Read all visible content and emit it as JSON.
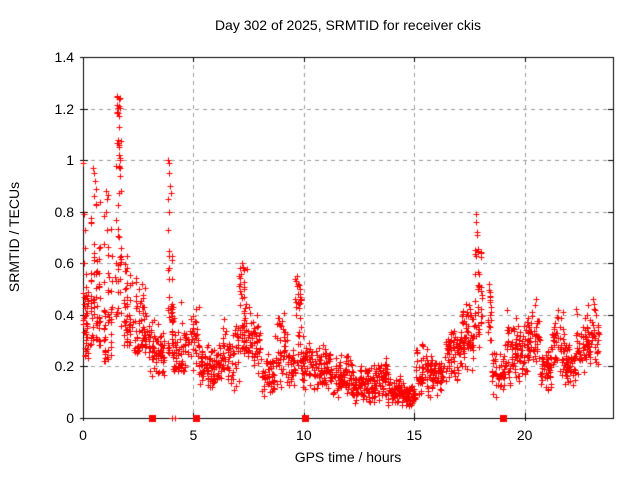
{
  "chart_data": {
    "type": "scatter",
    "title": "Day 302 of 2025, SRMTID for receiver ckis",
    "xlabel": "GPS time / hours",
    "ylabel": "SRMTID / TECUs",
    "xlim": [
      0,
      24
    ],
    "ylim": [
      0,
      1.4
    ],
    "xticks": [
      0,
      5,
      10,
      15,
      20
    ],
    "xtick_labels": [
      "0",
      "5",
      "10",
      "15",
      "20"
    ],
    "yticks": [
      0,
      0.2,
      0.4,
      0.6,
      0.8,
      1,
      1.2,
      1.4
    ],
    "ytick_labels": [
      "0",
      "0.2",
      "0.4",
      "0.6",
      "0.8",
      "1",
      "1.2",
      "1.4"
    ],
    "grid": true,
    "legend": "none",
    "marker": "plus",
    "marker_color": "#ff0000",
    "grid_color": "#9e9e9e",
    "axis_color": "#000000",
    "background_color": "#ffffff",
    "series_name": "SRMTID",
    "event_squares_x": [
      3.13,
      5.1,
      10.05,
      19.0
    ],
    "zero_line_points_x": [
      4.02,
      4.17
    ],
    "outlier_points": [
      [
        0.02,
        0.99
      ],
      [
        0.04,
        0.79
      ],
      [
        0.07,
        0.73
      ],
      [
        0.1,
        0.66
      ],
      [
        0.05,
        0.6
      ],
      [
        0.12,
        0.56
      ],
      [
        0.45,
        0.97
      ],
      [
        0.5,
        0.95
      ],
      [
        0.53,
        0.92
      ],
      [
        0.57,
        0.89
      ],
      [
        0.48,
        0.86
      ],
      [
        0.6,
        0.83
      ],
      [
        1.05,
        0.88
      ],
      [
        1.1,
        0.85
      ],
      [
        1.02,
        0.8
      ],
      [
        1.63,
        1.13
      ],
      [
        1.6,
        1.08
      ],
      [
        1.62,
        1.02
      ],
      [
        1.66,
        0.97
      ],
      [
        3.87,
        1.0
      ],
      [
        3.9,
        0.99
      ],
      [
        3.88,
        0.95
      ],
      [
        3.92,
        0.9
      ],
      [
        3.85,
        0.85
      ],
      [
        3.9,
        0.8
      ],
      [
        3.86,
        0.73
      ],
      [
        3.91,
        0.63
      ],
      [
        7.2,
        0.6
      ],
      [
        7.23,
        0.58
      ],
      [
        7.17,
        0.56
      ],
      [
        9.7,
        0.55
      ],
      [
        9.73,
        0.52
      ],
      [
        17.78,
        0.79
      ],
      [
        17.8,
        0.76
      ],
      [
        17.82,
        0.72
      ],
      [
        17.86,
        0.71
      ],
      [
        17.75,
        0.65
      ],
      [
        17.79,
        0.63
      ],
      [
        18.38,
        0.52
      ],
      [
        18.41,
        0.47
      ],
      [
        19.2,
        0.42
      ],
      [
        20.5,
        0.46
      ],
      [
        20.47,
        0.44
      ],
      [
        21.5,
        0.42
      ],
      [
        22.85,
        0.44
      ],
      [
        23.1,
        0.46
      ]
    ],
    "clusters": [
      {
        "x0": 0.0,
        "x1": 0.25,
        "ymin": 0.2,
        "ymax": 0.52,
        "n": 40,
        "dist": "tri"
      },
      {
        "x0": 0.3,
        "x1": 0.8,
        "ymin": 0.28,
        "ymax": 0.98,
        "n": 65,
        "dist": "bottom",
        "cols": 4
      },
      {
        "x0": 0.9,
        "x1": 1.35,
        "ymin": 0.22,
        "ymax": 0.9,
        "n": 50,
        "dist": "bottom",
        "cols": 3
      },
      {
        "x0": 1.45,
        "x1": 1.75,
        "ymin": 0.35,
        "ymax": 1.1,
        "n": 40,
        "dist": "uniform",
        "cols": 3
      },
      {
        "x0": 1.5,
        "x1": 1.68,
        "ymin": 1.17,
        "ymax": 1.25,
        "n": 12,
        "dist": "uniform",
        "cols": 2
      },
      {
        "x0": 1.8,
        "x1": 2.3,
        "ymin": 0.28,
        "ymax": 0.68,
        "n": 45,
        "dist": "bottom",
        "cols": 4
      },
      {
        "x0": 2.3,
        "x1": 3.0,
        "ymin": 0.25,
        "ymax": 0.58,
        "n": 70,
        "dist": "bottom"
      },
      {
        "x0": 3.0,
        "x1": 3.7,
        "ymin": 0.15,
        "ymax": 0.4,
        "n": 65,
        "dist": "tri"
      },
      {
        "x0": 3.8,
        "x1": 4.1,
        "ymin": 0.25,
        "ymax": 1.0,
        "n": 40,
        "dist": "bottom",
        "cols": 2
      },
      {
        "x0": 4.05,
        "x1": 4.6,
        "ymin": 0.18,
        "ymax": 0.5,
        "n": 55,
        "dist": "bottom"
      },
      {
        "x0": 4.6,
        "x1": 5.25,
        "ymin": 0.18,
        "ymax": 0.45,
        "n": 45,
        "dist": "tri"
      },
      {
        "x0": 5.25,
        "x1": 6.3,
        "ymin": 0.1,
        "ymax": 0.3,
        "n": 95,
        "dist": "tri"
      },
      {
        "x0": 6.3,
        "x1": 7.05,
        "ymin": 0.1,
        "ymax": 0.4,
        "n": 60,
        "dist": "tri"
      },
      {
        "x0": 7.05,
        "x1": 7.45,
        "ymin": 0.25,
        "ymax": 0.6,
        "n": 45,
        "dist": "uniform",
        "cols": 4
      },
      {
        "x0": 7.45,
        "x1": 8.1,
        "ymin": 0.15,
        "ymax": 0.45,
        "n": 55,
        "dist": "tri"
      },
      {
        "x0": 8.1,
        "x1": 8.7,
        "ymin": 0.06,
        "ymax": 0.26,
        "n": 50,
        "dist": "tri"
      },
      {
        "x0": 8.7,
        "x1": 9.3,
        "ymin": 0.1,
        "ymax": 0.42,
        "n": 50,
        "dist": "tri"
      },
      {
        "x0": 9.3,
        "x1": 9.6,
        "ymin": 0.12,
        "ymax": 0.3,
        "n": 30,
        "dist": "tri"
      },
      {
        "x0": 9.6,
        "x1": 9.9,
        "ymin": 0.18,
        "ymax": 0.55,
        "n": 35,
        "dist": "uniform",
        "cols": 3
      },
      {
        "x0": 9.9,
        "x1": 10.6,
        "ymin": 0.08,
        "ymax": 0.33,
        "n": 60,
        "dist": "tri"
      },
      {
        "x0": 10.6,
        "x1": 11.2,
        "ymin": 0.1,
        "ymax": 0.3,
        "n": 60,
        "dist": "tri"
      },
      {
        "x0": 11.2,
        "x1": 12.2,
        "ymin": 0.07,
        "ymax": 0.26,
        "n": 95,
        "dist": "tri"
      },
      {
        "x0": 12.2,
        "x1": 13.4,
        "ymin": 0.05,
        "ymax": 0.22,
        "n": 110,
        "dist": "tri"
      },
      {
        "x0": 13.4,
        "x1": 13.8,
        "ymin": 0.06,
        "ymax": 0.25,
        "n": 40,
        "dist": "tri"
      },
      {
        "x0": 13.8,
        "x1": 14.4,
        "ymin": 0.04,
        "ymax": 0.18,
        "n": 55,
        "dist": "tri"
      },
      {
        "x0": 14.4,
        "x1": 15.05,
        "ymin": 0.03,
        "ymax": 0.15,
        "n": 60,
        "dist": "tri"
      },
      {
        "x0": 15.05,
        "x1": 15.7,
        "ymin": 0.08,
        "ymax": 0.3,
        "n": 55,
        "dist": "tri"
      },
      {
        "x0": 15.7,
        "x1": 16.4,
        "ymin": 0.08,
        "ymax": 0.26,
        "n": 60,
        "dist": "tri"
      },
      {
        "x0": 16.4,
        "x1": 17.1,
        "ymin": 0.13,
        "ymax": 0.37,
        "n": 70,
        "dist": "tri"
      },
      {
        "x0": 17.1,
        "x1": 17.7,
        "ymin": 0.17,
        "ymax": 0.46,
        "n": 65,
        "dist": "tri"
      },
      {
        "x0": 17.7,
        "x1": 18.1,
        "ymin": 0.27,
        "ymax": 0.66,
        "n": 40,
        "dist": "uniform",
        "cols": 3
      },
      {
        "x0": 18.3,
        "x1": 18.5,
        "ymin": 0.3,
        "ymax": 0.5,
        "n": 16,
        "dist": "uniform",
        "cols": 2
      },
      {
        "x0": 18.5,
        "x1": 19.1,
        "ymin": 0.07,
        "ymax": 0.28,
        "n": 45,
        "dist": "tri"
      },
      {
        "x0": 19.1,
        "x1": 19.6,
        "ymin": 0.12,
        "ymax": 0.42,
        "n": 45,
        "dist": "tri"
      },
      {
        "x0": 19.6,
        "x1": 20.1,
        "ymin": 0.13,
        "ymax": 0.4,
        "n": 45,
        "dist": "tri"
      },
      {
        "x0": 20.1,
        "x1": 20.7,
        "ymin": 0.17,
        "ymax": 0.46,
        "n": 50,
        "dist": "tri"
      },
      {
        "x0": 20.7,
        "x1": 21.2,
        "ymin": 0.1,
        "ymax": 0.28,
        "n": 45,
        "dist": "tri"
      },
      {
        "x0": 21.2,
        "x1": 21.8,
        "ymin": 0.13,
        "ymax": 0.43,
        "n": 50,
        "dist": "tri"
      },
      {
        "x0": 21.8,
        "x1": 22.3,
        "ymin": 0.12,
        "ymax": 0.3,
        "n": 45,
        "dist": "tri"
      },
      {
        "x0": 22.3,
        "x1": 23.0,
        "ymin": 0.15,
        "ymax": 0.43,
        "n": 60,
        "dist": "tri"
      },
      {
        "x0": 23.0,
        "x1": 23.35,
        "ymin": 0.18,
        "ymax": 0.45,
        "n": 30,
        "dist": "tri"
      }
    ]
  }
}
